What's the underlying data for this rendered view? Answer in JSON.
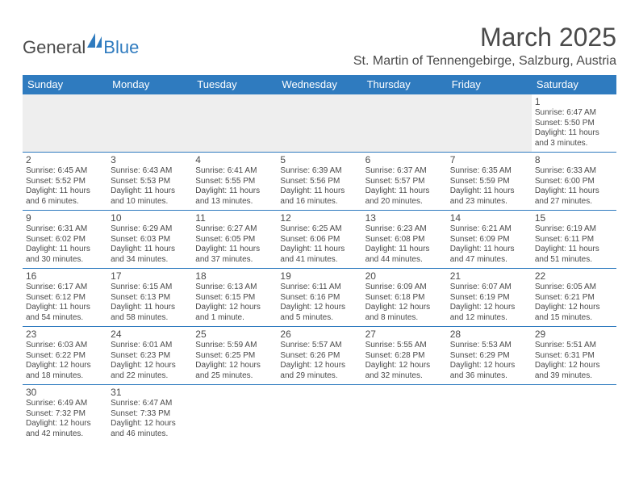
{
  "logo": {
    "text1": "General",
    "text2": "Blue"
  },
  "title": "March 2025",
  "location": "St. Martin of Tennengebirge, Salzburg, Austria",
  "headers": [
    "Sunday",
    "Monday",
    "Tuesday",
    "Wednesday",
    "Thursday",
    "Friday",
    "Saturday"
  ],
  "colors": {
    "header_bg": "#2f7bbf",
    "header_fg": "#ffffff",
    "text": "#4a4a4a",
    "blank_bg": "#eeeeee",
    "border": "#2f7bbf"
  },
  "weeks": [
    [
      null,
      null,
      null,
      null,
      null,
      null,
      {
        "n": "1",
        "sr": "Sunrise: 6:47 AM",
        "ss": "Sunset: 5:50 PM",
        "d1": "Daylight: 11 hours",
        "d2": "and 3 minutes."
      }
    ],
    [
      {
        "n": "2",
        "sr": "Sunrise: 6:45 AM",
        "ss": "Sunset: 5:52 PM",
        "d1": "Daylight: 11 hours",
        "d2": "and 6 minutes."
      },
      {
        "n": "3",
        "sr": "Sunrise: 6:43 AM",
        "ss": "Sunset: 5:53 PM",
        "d1": "Daylight: 11 hours",
        "d2": "and 10 minutes."
      },
      {
        "n": "4",
        "sr": "Sunrise: 6:41 AM",
        "ss": "Sunset: 5:55 PM",
        "d1": "Daylight: 11 hours",
        "d2": "and 13 minutes."
      },
      {
        "n": "5",
        "sr": "Sunrise: 6:39 AM",
        "ss": "Sunset: 5:56 PM",
        "d1": "Daylight: 11 hours",
        "d2": "and 16 minutes."
      },
      {
        "n": "6",
        "sr": "Sunrise: 6:37 AM",
        "ss": "Sunset: 5:57 PM",
        "d1": "Daylight: 11 hours",
        "d2": "and 20 minutes."
      },
      {
        "n": "7",
        "sr": "Sunrise: 6:35 AM",
        "ss": "Sunset: 5:59 PM",
        "d1": "Daylight: 11 hours",
        "d2": "and 23 minutes."
      },
      {
        "n": "8",
        "sr": "Sunrise: 6:33 AM",
        "ss": "Sunset: 6:00 PM",
        "d1": "Daylight: 11 hours",
        "d2": "and 27 minutes."
      }
    ],
    [
      {
        "n": "9",
        "sr": "Sunrise: 6:31 AM",
        "ss": "Sunset: 6:02 PM",
        "d1": "Daylight: 11 hours",
        "d2": "and 30 minutes."
      },
      {
        "n": "10",
        "sr": "Sunrise: 6:29 AM",
        "ss": "Sunset: 6:03 PM",
        "d1": "Daylight: 11 hours",
        "d2": "and 34 minutes."
      },
      {
        "n": "11",
        "sr": "Sunrise: 6:27 AM",
        "ss": "Sunset: 6:05 PM",
        "d1": "Daylight: 11 hours",
        "d2": "and 37 minutes."
      },
      {
        "n": "12",
        "sr": "Sunrise: 6:25 AM",
        "ss": "Sunset: 6:06 PM",
        "d1": "Daylight: 11 hours",
        "d2": "and 41 minutes."
      },
      {
        "n": "13",
        "sr": "Sunrise: 6:23 AM",
        "ss": "Sunset: 6:08 PM",
        "d1": "Daylight: 11 hours",
        "d2": "and 44 minutes."
      },
      {
        "n": "14",
        "sr": "Sunrise: 6:21 AM",
        "ss": "Sunset: 6:09 PM",
        "d1": "Daylight: 11 hours",
        "d2": "and 47 minutes."
      },
      {
        "n": "15",
        "sr": "Sunrise: 6:19 AM",
        "ss": "Sunset: 6:11 PM",
        "d1": "Daylight: 11 hours",
        "d2": "and 51 minutes."
      }
    ],
    [
      {
        "n": "16",
        "sr": "Sunrise: 6:17 AM",
        "ss": "Sunset: 6:12 PM",
        "d1": "Daylight: 11 hours",
        "d2": "and 54 minutes."
      },
      {
        "n": "17",
        "sr": "Sunrise: 6:15 AM",
        "ss": "Sunset: 6:13 PM",
        "d1": "Daylight: 11 hours",
        "d2": "and 58 minutes."
      },
      {
        "n": "18",
        "sr": "Sunrise: 6:13 AM",
        "ss": "Sunset: 6:15 PM",
        "d1": "Daylight: 12 hours",
        "d2": "and 1 minute."
      },
      {
        "n": "19",
        "sr": "Sunrise: 6:11 AM",
        "ss": "Sunset: 6:16 PM",
        "d1": "Daylight: 12 hours",
        "d2": "and 5 minutes."
      },
      {
        "n": "20",
        "sr": "Sunrise: 6:09 AM",
        "ss": "Sunset: 6:18 PM",
        "d1": "Daylight: 12 hours",
        "d2": "and 8 minutes."
      },
      {
        "n": "21",
        "sr": "Sunrise: 6:07 AM",
        "ss": "Sunset: 6:19 PM",
        "d1": "Daylight: 12 hours",
        "d2": "and 12 minutes."
      },
      {
        "n": "22",
        "sr": "Sunrise: 6:05 AM",
        "ss": "Sunset: 6:21 PM",
        "d1": "Daylight: 12 hours",
        "d2": "and 15 minutes."
      }
    ],
    [
      {
        "n": "23",
        "sr": "Sunrise: 6:03 AM",
        "ss": "Sunset: 6:22 PM",
        "d1": "Daylight: 12 hours",
        "d2": "and 18 minutes."
      },
      {
        "n": "24",
        "sr": "Sunrise: 6:01 AM",
        "ss": "Sunset: 6:23 PM",
        "d1": "Daylight: 12 hours",
        "d2": "and 22 minutes."
      },
      {
        "n": "25",
        "sr": "Sunrise: 5:59 AM",
        "ss": "Sunset: 6:25 PM",
        "d1": "Daylight: 12 hours",
        "d2": "and 25 minutes."
      },
      {
        "n": "26",
        "sr": "Sunrise: 5:57 AM",
        "ss": "Sunset: 6:26 PM",
        "d1": "Daylight: 12 hours",
        "d2": "and 29 minutes."
      },
      {
        "n": "27",
        "sr": "Sunrise: 5:55 AM",
        "ss": "Sunset: 6:28 PM",
        "d1": "Daylight: 12 hours",
        "d2": "and 32 minutes."
      },
      {
        "n": "28",
        "sr": "Sunrise: 5:53 AM",
        "ss": "Sunset: 6:29 PM",
        "d1": "Daylight: 12 hours",
        "d2": "and 36 minutes."
      },
      {
        "n": "29",
        "sr": "Sunrise: 5:51 AM",
        "ss": "Sunset: 6:31 PM",
        "d1": "Daylight: 12 hours",
        "d2": "and 39 minutes."
      }
    ],
    [
      {
        "n": "30",
        "sr": "Sunrise: 6:49 AM",
        "ss": "Sunset: 7:32 PM",
        "d1": "Daylight: 12 hours",
        "d2": "and 42 minutes."
      },
      {
        "n": "31",
        "sr": "Sunrise: 6:47 AM",
        "ss": "Sunset: 7:33 PM",
        "d1": "Daylight: 12 hours",
        "d2": "and 46 minutes."
      },
      null,
      null,
      null,
      null,
      null
    ]
  ]
}
